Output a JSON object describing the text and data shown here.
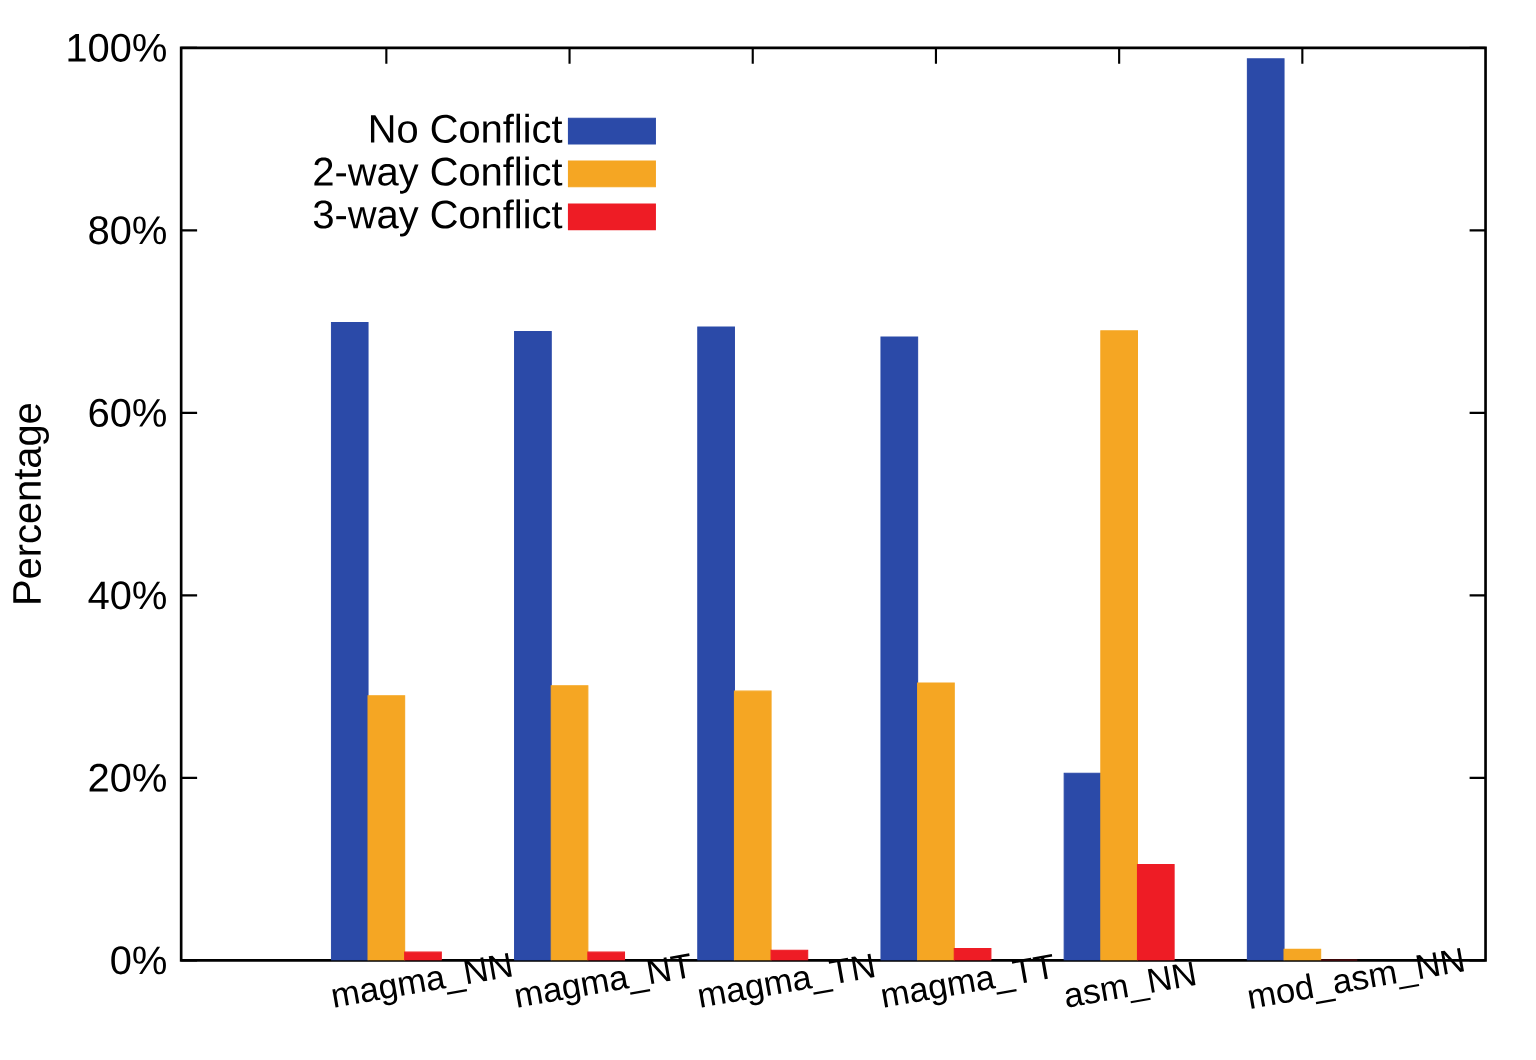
{
  "chart_data": {
    "type": "bar",
    "ylabel": "Percentage",
    "categories": [
      "magma_NN",
      "magma_NT",
      "magma_TN",
      "magma_TT",
      "asm_NN",
      "mod_asm_NN"
    ],
    "series": [
      {
        "name": "No Conflict",
        "color": "#2b4aa8",
        "values": [
          69.9,
          68.9,
          69.4,
          68.3,
          20.5,
          98.8
        ]
      },
      {
        "name": "2-way Conflict",
        "color": "#f5a623",
        "values": [
          29.0,
          30.1,
          29.5,
          30.4,
          69.0,
          1.2
        ]
      },
      {
        "name": "3-way Conflict",
        "color": "#ee1c25",
        "values": [
          0.9,
          0.9,
          1.1,
          1.3,
          10.5,
          0
        ]
      }
    ],
    "ylim": [
      0,
      100
    ],
    "yticks": [
      {
        "value": 0,
        "label": "0%"
      },
      {
        "value": 20,
        "label": "20%"
      },
      {
        "value": 40,
        "label": "40%"
      },
      {
        "value": 60,
        "label": "60%"
      },
      {
        "value": 80,
        "label": "80%"
      },
      {
        "value": 100,
        "label": "100%"
      }
    ],
    "grid": false,
    "legend": "top left"
  }
}
